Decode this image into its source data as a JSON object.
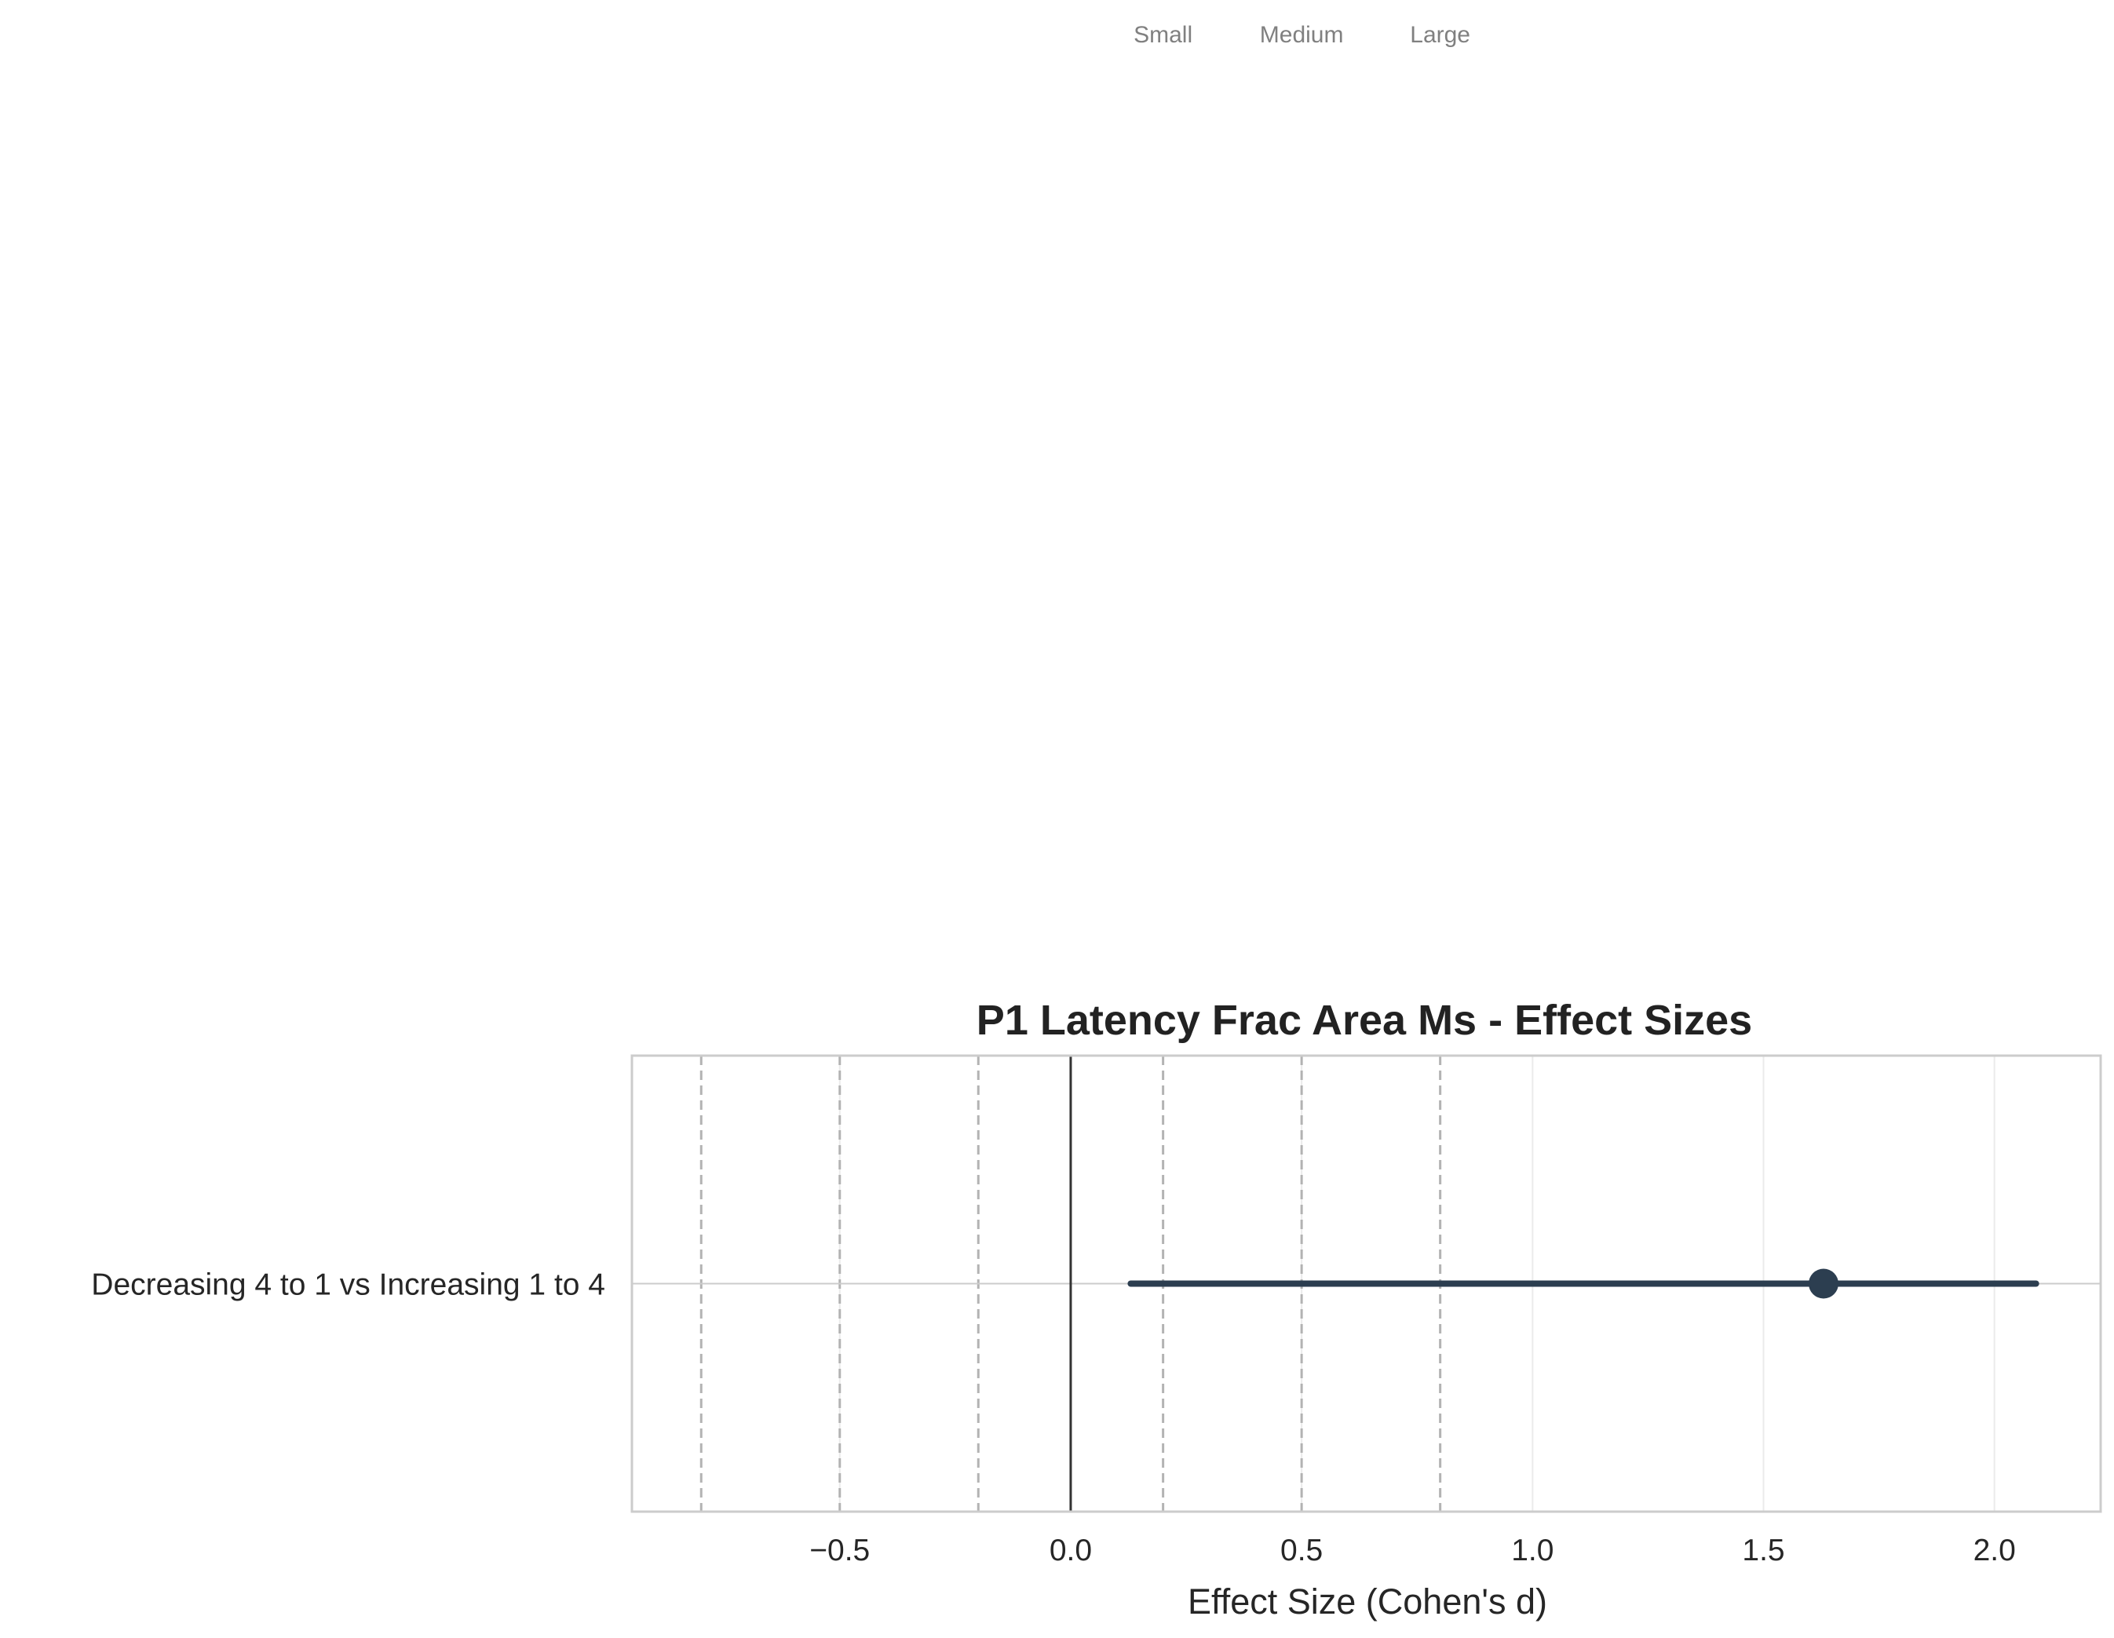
{
  "chart_data": {
    "type": "forest",
    "title": "P1 Latency Frac Area Ms - Effect Sizes",
    "xlabel": "Effect Size (Cohen's d)",
    "ylabel": "",
    "xlim": [
      -0.95,
      2.23
    ],
    "xticks": [
      -0.5,
      0.0,
      0.5,
      1.0,
      1.5,
      2.0
    ],
    "xtick_labels": [
      "−0.5",
      "0.0",
      "0.5",
      "1.0",
      "1.5",
      "2.0"
    ],
    "grid": true,
    "categories": [
      "Decreasing 4 to 1 vs Increasing 1 to 4"
    ],
    "points": [
      {
        "label": "Decreasing 4 to 1 vs Increasing 1 to 4",
        "estimate": 1.63,
        "ci_low": 0.13,
        "ci_high": 2.09
      }
    ],
    "zero_line": 0.0,
    "threshold_lines": [
      -0.8,
      -0.5,
      -0.2,
      0.2,
      0.5,
      0.8
    ],
    "threshold_annotations": [
      {
        "label": "Small",
        "x": 0.2
      },
      {
        "label": "Medium",
        "x": 0.5
      },
      {
        "label": "Large",
        "x": 0.8
      }
    ],
    "colors": {
      "point": "#2c3e50",
      "threshold": "#b3b3b3",
      "zero": "#333333",
      "grid": "#ebebeb",
      "frame": "#cccccc"
    }
  }
}
